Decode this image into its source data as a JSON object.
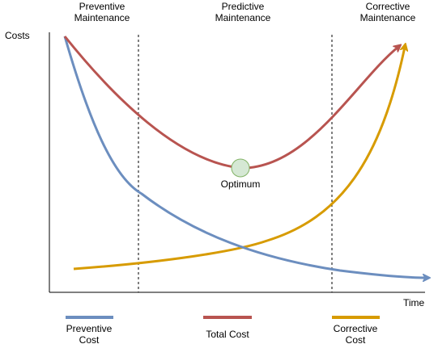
{
  "axes": {
    "y_label": "Costs",
    "x_label": "Time"
  },
  "regions": [
    {
      "line1": "Preventive",
      "line2": "Maintenance"
    },
    {
      "line1": "Predictive",
      "line2": "Maintenance"
    },
    {
      "line1": "Corrective",
      "line2": "Maintenance"
    }
  ],
  "optimum_label": "Optimum",
  "legend": [
    {
      "line1": "Preventive",
      "line2": "Cost",
      "color": "#6c8ebf"
    },
    {
      "line1": "Total Cost",
      "line2": "",
      "color": "#b85450"
    },
    {
      "line1": "Corrective",
      "line2": "Cost",
      "color": "#d79b00"
    }
  ],
  "colors": {
    "preventive": "#6c8ebf",
    "total": "#b85450",
    "corrective": "#d79b00",
    "optimum_fill": "#d5e8d4",
    "optimum_stroke": "#82b366"
  }
}
